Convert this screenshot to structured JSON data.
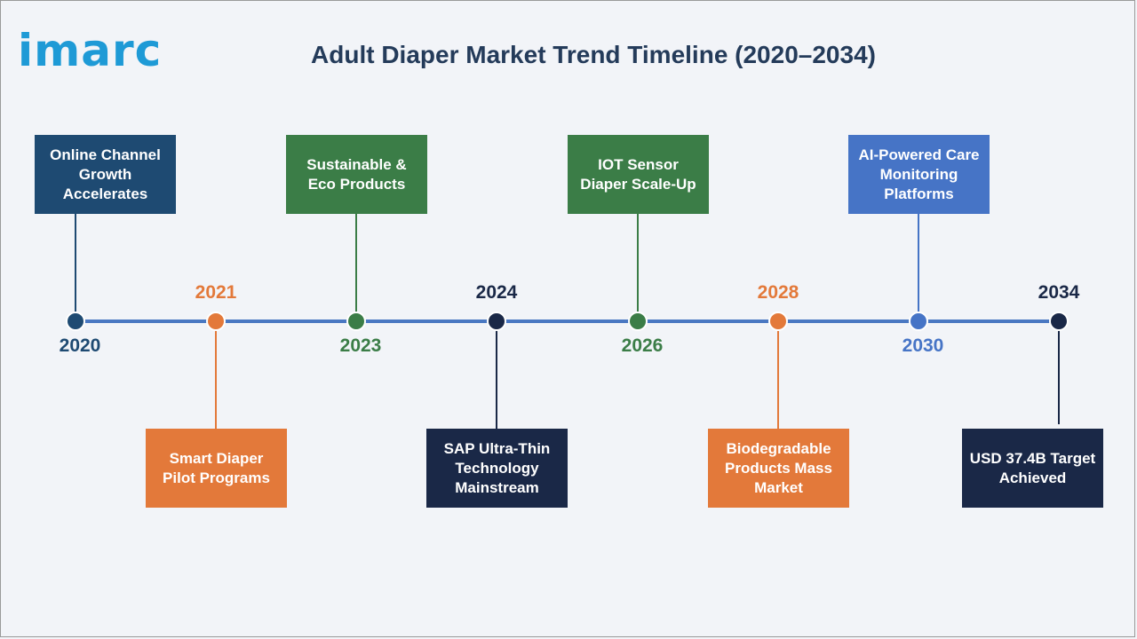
{
  "logo": {
    "text": "imarc"
  },
  "title": "Adult Diaper Market Trend Timeline (2020–2034)",
  "colors": {
    "axis": "#4a78c2",
    "navy": "#1e4a72",
    "orange": "#e3793a",
    "green": "#3b7d47",
    "dark": "#1a2847",
    "blue": "#4674c6"
  },
  "milestones": [
    {
      "year": "2020",
      "label": "Online Channel Growth Accelerates",
      "color": "#1e4a72",
      "year_color": "#1e4a72"
    },
    {
      "year": "2021",
      "label": "Smart Diaper Pilot Programs",
      "color": "#e3793a",
      "year_color": "#e3793a"
    },
    {
      "year": "2023",
      "label": "Sustainable & Eco Products",
      "color": "#3b7d47",
      "year_color": "#3b7d47"
    },
    {
      "year": "2024",
      "label": "SAP Ultra-Thin Technology Mainstream",
      "color": "#1a2847",
      "year_color": "#1a2847"
    },
    {
      "year": "2026",
      "label": "IOT Sensor Diaper Scale-Up",
      "color": "#3b7d47",
      "year_color": "#3b7d47"
    },
    {
      "year": "2028",
      "label": "Biodegradable Products Mass Market",
      "color": "#e3793a",
      "year_color": "#e3793a"
    },
    {
      "year": "2030",
      "label": "AI-Powered Care Monitoring Platforms",
      "color": "#4674c6",
      "year_color": "#4674c6"
    },
    {
      "year": "2034",
      "label": "USD 37.4B Target Achieved",
      "color": "#1a2847",
      "year_color": "#1a2847"
    }
  ]
}
